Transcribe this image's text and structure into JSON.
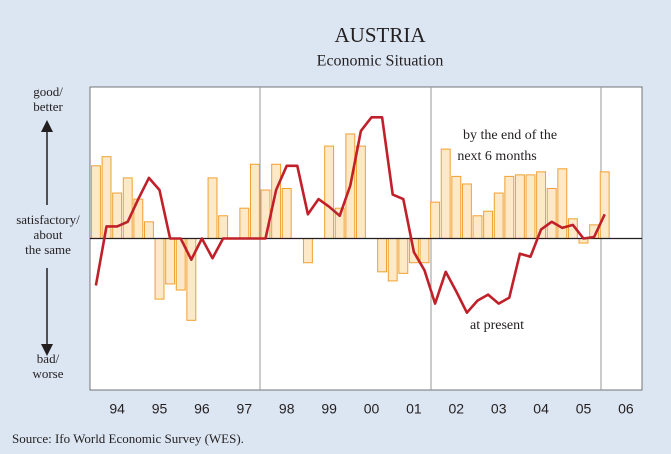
{
  "chart_data": {
    "type": "bar-line",
    "title": "AUSTRIA",
    "subtitle": "Economic Situation",
    "source": "Source: Ifo World Economic Survey (WES).",
    "y_labels": {
      "top": [
        "good/",
        "better"
      ],
      "middle": [
        "satisfactory/",
        "about",
        "the same"
      ],
      "bottom": [
        "bad/",
        "worse"
      ]
    },
    "annotations": {
      "expectations": [
        "by the end of the",
        "next 6 months"
      ],
      "present": "at present"
    },
    "x": [
      1994,
      1994.25,
      1994.5,
      1994.75,
      1995,
      1995.25,
      1995.5,
      1995.75,
      1996,
      1996.25,
      1996.5,
      1996.75,
      1997,
      1997.25,
      1997.5,
      1997.75,
      1998,
      1998.25,
      1998.5,
      1998.75,
      1999,
      1999.25,
      1999.5,
      1999.75,
      2000,
      2000.25,
      2000.5,
      2000.75,
      2001,
      2001.25,
      2001.5,
      2001.75,
      2002,
      2002.25,
      2002.5,
      2002.75,
      2003,
      2003.25,
      2003.5,
      2003.75,
      2004,
      2004.25,
      2004.5,
      2004.75,
      2005,
      2005.25,
      2005.5,
      2005.75,
      2006
    ],
    "series": [
      {
        "kind": "bar",
        "color": "#f0a030",
        "fill": "#fde9c8",
        "values": [
          48,
          54,
          30,
          40,
          26,
          11,
          -40,
          -30,
          -34,
          -54,
          0,
          40,
          15,
          0,
          20,
          49,
          32,
          49,
          33,
          0,
          -16,
          0,
          61,
          20,
          69,
          61,
          0,
          -22,
          -28,
          -23,
          -16,
          -16,
          24,
          59,
          41,
          36,
          15,
          18,
          30,
          41,
          42,
          42,
          44,
          33,
          46,
          13,
          -3,
          9,
          44
        ]
      },
      {
        "kind": "line",
        "color": "#c0202a",
        "values": [
          -31,
          8,
          8,
          11,
          26,
          40,
          32,
          0,
          0,
          -14,
          0,
          -13,
          0,
          0,
          0,
          0,
          0,
          32,
          48,
          48,
          16,
          26,
          21,
          15,
          35,
          71,
          80,
          80,
          29,
          26,
          -9,
          -21,
          -43,
          -22,
          -35,
          -49,
          -41,
          -37,
          -43,
          -39,
          -10,
          -12,
          6,
          11,
          7,
          9,
          0,
          1,
          16
        ]
      }
    ],
    "xlim": [
      1993.86,
      2006.88
    ],
    "ylim": [
      -100,
      100
    ],
    "xticks": [
      {
        "value": 1994.5,
        "label": "94"
      },
      {
        "value": 1995.5,
        "label": "95"
      },
      {
        "value": 1996.5,
        "label": "96"
      },
      {
        "value": 1997.5,
        "label": "97"
      },
      {
        "value": 1998.5,
        "label": "98"
      },
      {
        "value": 1999.5,
        "label": "99"
      },
      {
        "value": 2000.5,
        "label": "00"
      },
      {
        "value": 2001.5,
        "label": "01"
      },
      {
        "value": 2002.5,
        "label": "02"
      },
      {
        "value": 2003.5,
        "label": "03"
      },
      {
        "value": 2004.5,
        "label": "04"
      },
      {
        "value": 2005.5,
        "label": "05"
      },
      {
        "value": 2006.5,
        "label": "06"
      }
    ]
  }
}
